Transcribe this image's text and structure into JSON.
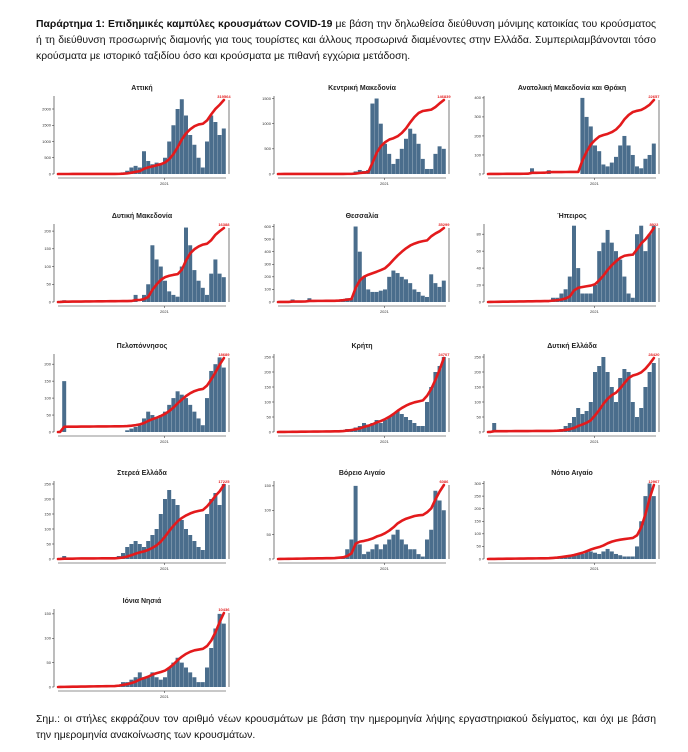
{
  "intro": {
    "bold": "Παράρτημα 1:  Επιδημικές καμπύλες κρουσμάτων COVID-19",
    "text": " με βάση την δηλωθείσα διεύθυνση μόνιμης κατοικίας του κρούσματος ή τη διεύθυνση προσωρινής διαμονής για τους τουρίστες και άλλους προσωρινά διαμένοντες στην Ελλάδα. Συμπεριλαμβάνονται τόσο κρούσματα με ιστορικό ταξιδίου όσο και κρούσματα με πιθανή εγχώρια μετάδοση."
  },
  "note": "Σημ.:  οι στήλες εκφράζουν τον αριθμό νέων κρουσμάτων με βάση την ημερομηνία λήψης εργαστηριακού δείγματος, και όχι με βάση την ημερομηνία ανακοίνωσης των κρουσμάτων.",
  "colors": {
    "bars": "#4a6d8c",
    "line": "#e31a1c"
  },
  "chart_data": [
    {
      "type": "bar+line",
      "title": "Αττική",
      "x_tick": "2021",
      "yticks": [
        0,
        500,
        1000,
        1500,
        2000
      ],
      "ymax": 2400,
      "end_label": "319564",
      "values": [
        0,
        0,
        0,
        0,
        0,
        0,
        0,
        0,
        0,
        0,
        0,
        0,
        0,
        0,
        20,
        50,
        100,
        200,
        250,
        200,
        700,
        400,
        300,
        350,
        300,
        500,
        1000,
        1500,
        2000,
        2300,
        1800,
        1200,
        900,
        500,
        200,
        1000,
        1800,
        1600,
        1200,
        1400
      ]
    },
    {
      "type": "bar+line",
      "title": "Κεντρική Μακεδονία",
      "x_tick": "2021",
      "yticks": [
        0,
        500,
        1000,
        1500
      ],
      "ymax": 1550,
      "end_label": "146839",
      "values": [
        0,
        0,
        0,
        0,
        0,
        0,
        0,
        0,
        0,
        0,
        0,
        0,
        0,
        0,
        0,
        0,
        0,
        0,
        50,
        80,
        60,
        80,
        1400,
        1500,
        1000,
        600,
        400,
        200,
        300,
        500,
        700,
        900,
        800,
        600,
        300,
        100,
        100,
        400,
        550,
        500
      ]
    },
    {
      "type": "bar+line",
      "title": "Ανατολική Μακεδονία και Θράκη",
      "x_tick": "2021",
      "yticks": [
        0,
        100,
        200,
        300,
        400
      ],
      "ymax": 410,
      "end_label": "22657",
      "values": [
        0,
        0,
        0,
        0,
        0,
        0,
        0,
        0,
        0,
        0,
        30,
        0,
        0,
        0,
        20,
        0,
        0,
        0,
        0,
        0,
        0,
        0,
        400,
        300,
        250,
        150,
        120,
        50,
        40,
        60,
        90,
        150,
        200,
        150,
        100,
        40,
        30,
        80,
        100,
        160
      ]
    },
    {
      "type": "bar+line",
      "title": "Δυτική Μακεδονία",
      "x_tick": "2021",
      "yticks": [
        0,
        50,
        100,
        150,
        200
      ],
      "ymax": 220,
      "end_label": "16388",
      "values": [
        0,
        5,
        0,
        0,
        0,
        0,
        0,
        0,
        0,
        0,
        0,
        0,
        0,
        0,
        0,
        0,
        0,
        0,
        20,
        0,
        20,
        50,
        160,
        120,
        100,
        60,
        30,
        20,
        15,
        100,
        210,
        160,
        90,
        60,
        40,
        20,
        80,
        120,
        80,
        70
      ]
    },
    {
      "type": "bar+line",
      "title": "Θεσσαλία",
      "x_tick": "2021",
      "yticks": [
        0,
        100,
        200,
        300,
        400,
        500,
        600
      ],
      "ymax": 620,
      "end_label": "35299",
      "values": [
        0,
        0,
        0,
        20,
        0,
        0,
        0,
        30,
        0,
        0,
        0,
        0,
        0,
        0,
        10,
        20,
        30,
        30,
        600,
        400,
        200,
        100,
        80,
        80,
        90,
        100,
        200,
        250,
        230,
        200,
        180,
        150,
        100,
        80,
        50,
        40,
        220,
        150,
        120,
        170
      ]
    },
    {
      "type": "bar+line",
      "title": "Ήπειρος",
      "x_tick": "2021",
      "yticks": [
        0,
        20,
        40,
        60,
        80
      ],
      "ymax": 92,
      "end_label": "8922",
      "values": [
        0,
        0,
        0,
        0,
        0,
        0,
        0,
        0,
        0,
        0,
        0,
        0,
        0,
        0,
        0,
        5,
        5,
        10,
        15,
        30,
        90,
        40,
        10,
        10,
        10,
        20,
        60,
        70,
        85,
        70,
        60,
        50,
        30,
        10,
        5,
        80,
        90,
        60,
        80,
        90
      ]
    },
    {
      "type": "bar+line",
      "title": "Πελοπόννησος",
      "x_tick": "2021",
      "yticks": [
        0,
        50,
        100,
        150,
        200
      ],
      "ymax": 230,
      "end_label": "18689",
      "values": [
        0,
        150,
        0,
        0,
        0,
        0,
        0,
        0,
        0,
        0,
        0,
        0,
        0,
        0,
        0,
        0,
        5,
        10,
        15,
        20,
        40,
        60,
        50,
        40,
        50,
        60,
        80,
        100,
        120,
        110,
        100,
        80,
        60,
        40,
        20,
        100,
        180,
        200,
        220,
        190
      ]
    },
    {
      "type": "bar+line",
      "title": "Κρήτη",
      "x_tick": "2021",
      "yticks": [
        0,
        50,
        100,
        150,
        200,
        250
      ],
      "ymax": 260,
      "end_label": "24707",
      "values": [
        0,
        0,
        0,
        0,
        0,
        0,
        0,
        0,
        0,
        0,
        0,
        0,
        0,
        0,
        0,
        5,
        10,
        10,
        15,
        20,
        30,
        25,
        30,
        40,
        30,
        40,
        50,
        60,
        70,
        60,
        50,
        40,
        30,
        20,
        20,
        100,
        150,
        200,
        220,
        250
      ]
    },
    {
      "type": "bar+line",
      "title": "Δυτική Ελλάδα",
      "x_tick": "2021",
      "yticks": [
        0,
        50,
        100,
        150,
        200,
        250
      ],
      "ymax": 260,
      "end_label": "28420",
      "values": [
        0,
        30,
        0,
        0,
        0,
        0,
        0,
        0,
        0,
        0,
        0,
        0,
        0,
        0,
        0,
        0,
        5,
        10,
        20,
        30,
        50,
        80,
        60,
        70,
        100,
        200,
        220,
        250,
        200,
        150,
        100,
        180,
        210,
        200,
        100,
        50,
        80,
        150,
        200,
        230
      ]
    },
    {
      "type": "bar+line",
      "title": "Στερεά Ελλάδα",
      "x_tick": "2021",
      "yticks": [
        0,
        50,
        100,
        150,
        200,
        250
      ],
      "ymax": 260,
      "end_label": "17225",
      "values": [
        0,
        10,
        0,
        0,
        5,
        0,
        0,
        0,
        0,
        0,
        0,
        0,
        0,
        0,
        10,
        20,
        40,
        50,
        60,
        50,
        40,
        60,
        80,
        100,
        150,
        200,
        230,
        200,
        180,
        130,
        100,
        80,
        60,
        40,
        30,
        150,
        200,
        220,
        180,
        250
      ]
    },
    {
      "type": "bar+line",
      "title": "Βόρειο Αιγαίο",
      "x_tick": "2021",
      "yticks": [
        0,
        50,
        100,
        150
      ],
      "ymax": 160,
      "end_label": "6086",
      "values": [
        0,
        0,
        0,
        0,
        0,
        0,
        0,
        0,
        0,
        0,
        0,
        0,
        0,
        0,
        5,
        5,
        20,
        40,
        150,
        30,
        10,
        15,
        20,
        30,
        20,
        30,
        40,
        50,
        60,
        40,
        30,
        20,
        20,
        10,
        5,
        40,
        60,
        140,
        120,
        100
      ]
    },
    {
      "type": "bar+line",
      "title": "Νότιο Αιγαίο",
      "x_tick": "2021",
      "yticks": [
        0,
        50,
        100,
        150,
        200,
        250,
        300
      ],
      "ymax": 310,
      "end_label": "12967",
      "values": [
        0,
        0,
        0,
        0,
        0,
        0,
        0,
        0,
        0,
        0,
        0,
        0,
        0,
        0,
        0,
        5,
        5,
        10,
        10,
        10,
        15,
        20,
        20,
        30,
        30,
        25,
        20,
        30,
        40,
        30,
        20,
        15,
        10,
        10,
        10,
        50,
        150,
        250,
        300,
        250
      ]
    },
    {
      "type": "bar+line",
      "title": "Ιόνια Νησιά",
      "x_tick": "2021",
      "yticks": [
        0,
        50,
        100,
        150
      ],
      "ymax": 160,
      "end_label": "10436",
      "values": [
        0,
        0,
        0,
        0,
        0,
        0,
        0,
        0,
        0,
        0,
        0,
        0,
        0,
        0,
        5,
        10,
        10,
        15,
        20,
        30,
        20,
        20,
        30,
        20,
        15,
        20,
        40,
        50,
        60,
        50,
        40,
        30,
        20,
        10,
        10,
        40,
        80,
        120,
        150,
        130
      ]
    }
  ]
}
